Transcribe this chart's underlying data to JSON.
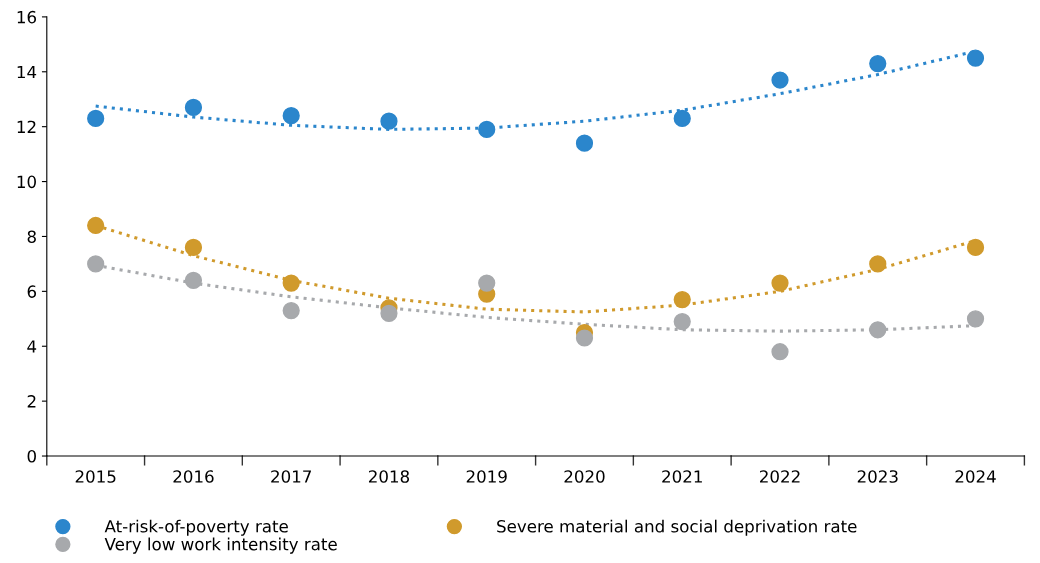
{
  "chart_data": {
    "type": "scatter",
    "categories": [
      "2015",
      "2016",
      "2017",
      "2018",
      "2019",
      "2020",
      "2021",
      "2022",
      "2023",
      "2024"
    ],
    "ylim": [
      0,
      16
    ],
    "yticks": [
      0,
      2,
      4,
      6,
      8,
      10,
      12,
      14,
      16
    ],
    "grid": false,
    "legend": "bottom",
    "series": [
      {
        "type": "line",
        "line_style": "dotted",
        "marker": "none",
        "color": "#2b86cc",
        "values": [
          12.75,
          12.35,
          12.05,
          11.9,
          11.95,
          12.2,
          12.6,
          13.2,
          13.9,
          14.75
        ]
      },
      {
        "type": "line",
        "line_style": "dotted",
        "marker": "none",
        "color": "#d09a2c",
        "values": [
          8.4,
          7.3,
          6.4,
          5.75,
          5.35,
          5.25,
          5.5,
          6.0,
          6.8,
          7.85
        ]
      },
      {
        "type": "line",
        "line_style": "dotted",
        "marker": "none",
        "color": "#a7a9ac",
        "values": [
          6.95,
          6.3,
          5.8,
          5.4,
          5.05,
          4.8,
          4.6,
          4.55,
          4.6,
          4.75
        ]
      },
      {
        "name": "At-risk-of-poverty rate",
        "marker": "circle",
        "color": "#2b86cc",
        "values": [
          12.3,
          12.7,
          12.4,
          12.2,
          11.9,
          11.4,
          12.3,
          13.7,
          14.3,
          14.5
        ]
      },
      {
        "name": "Severe material and social deprivation rate",
        "marker": "circle",
        "color": "#d09a2c",
        "values": [
          8.4,
          7.6,
          6.3,
          5.4,
          5.9,
          4.5,
          5.7,
          6.3,
          7.0,
          7.6
        ]
      },
      {
        "name": "Very low work intensity rate",
        "marker": "circle",
        "color": "#a7a9ac",
        "values": [
          7.0,
          6.4,
          5.3,
          5.2,
          6.3,
          4.3,
          4.9,
          3.8,
          4.6,
          5.0
        ]
      }
    ]
  }
}
